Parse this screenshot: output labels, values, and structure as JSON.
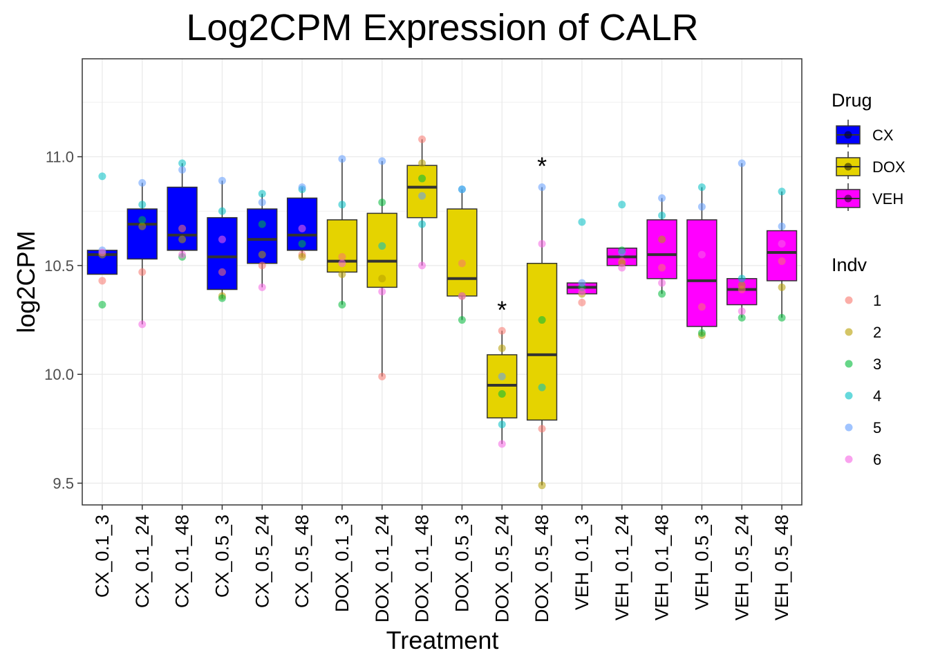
{
  "chart_data": {
    "type": "boxplot",
    "title": "Log2CPM Expression of CALR",
    "xlabel": "Treatment",
    "ylabel": "log2CPM",
    "ylim": [
      9.4,
      11.45
    ],
    "yticks": [
      9.5,
      10.0,
      10.5,
      11.0
    ],
    "ytick_labels": [
      "9.5",
      "10.0",
      "10.5",
      "11.0"
    ],
    "grid": true,
    "legend_position": "right",
    "legend_drug": {
      "title": "Drug",
      "entries": [
        {
          "label": "CX",
          "color": "#0000FF"
        },
        {
          "label": "DOX",
          "color": "#E5D300"
        },
        {
          "label": "VEH",
          "color": "#FF00FF"
        }
      ]
    },
    "legend_indv": {
      "title": "Indv",
      "entries": [
        {
          "label": "1",
          "color": "#F8766D"
        },
        {
          "label": "2",
          "color": "#B79F00"
        },
        {
          "label": "3",
          "color": "#00BA38"
        },
        {
          "label": "4",
          "color": "#00BFC4"
        },
        {
          "label": "5",
          "color": "#619CFF"
        },
        {
          "label": "6",
          "color": "#F564E3"
        }
      ]
    },
    "significance_marker": "*",
    "categories": [
      {
        "name": "CX_0.1_3",
        "drug": "CX",
        "min": 10.46,
        "q1": 10.46,
        "median": 10.55,
        "q3": 10.57,
        "max": 10.57,
        "sig": false,
        "points": [
          10.43,
          10.55,
          10.32,
          10.91,
          10.57,
          10.56
        ]
      },
      {
        "name": "CX_0.1_24",
        "drug": "CX",
        "min": 10.23,
        "q1": 10.53,
        "median": 10.69,
        "q3": 10.76,
        "max": 10.88,
        "sig": false,
        "points": [
          10.47,
          10.68,
          10.71,
          10.78,
          10.88,
          10.23
        ]
      },
      {
        "name": "CX_0.1_48",
        "drug": "CX",
        "min": 10.54,
        "q1": 10.57,
        "median": 10.64,
        "q3": 10.86,
        "max": 10.97,
        "sig": false,
        "points": [
          10.67,
          10.62,
          10.54,
          10.97,
          10.94,
          10.55
        ]
      },
      {
        "name": "CX_0.5_3",
        "drug": "CX",
        "min": 10.35,
        "q1": 10.39,
        "median": 10.54,
        "q3": 10.72,
        "max": 10.89,
        "sig": false,
        "points": [
          10.47,
          10.36,
          10.35,
          10.75,
          10.89,
          10.62
        ]
      },
      {
        "name": "CX_0.5_24",
        "drug": "CX",
        "min": 10.4,
        "q1": 10.51,
        "median": 10.62,
        "q3": 10.76,
        "max": 10.83,
        "sig": false,
        "points": [
          10.5,
          10.55,
          10.69,
          10.83,
          10.79,
          10.4
        ]
      },
      {
        "name": "CX_0.5_48",
        "drug": "CX",
        "min": 10.54,
        "q1": 10.57,
        "median": 10.64,
        "q3": 10.81,
        "max": 10.86,
        "sig": false,
        "points": [
          10.55,
          10.54,
          10.6,
          10.85,
          10.86,
          10.67
        ]
      },
      {
        "name": "DOX_0.1_3",
        "drug": "DOX",
        "min": 10.32,
        "q1": 10.47,
        "median": 10.52,
        "q3": 10.71,
        "max": 10.99,
        "sig": false,
        "points": [
          10.54,
          10.46,
          10.32,
          10.78,
          10.99,
          10.51
        ]
      },
      {
        "name": "DOX_0.1_24",
        "drug": "DOX",
        "min": 9.99,
        "q1": 10.4,
        "median": 10.52,
        "q3": 10.74,
        "max": 10.98,
        "sig": false,
        "points": [
          9.99,
          10.44,
          10.79,
          10.59,
          10.98,
          10.38
        ]
      },
      {
        "name": "DOX_0.1_48",
        "drug": "DOX",
        "min": 10.5,
        "q1": 10.72,
        "median": 10.86,
        "q3": 10.96,
        "max": 11.08,
        "sig": false,
        "points": [
          11.08,
          10.97,
          10.9,
          10.69,
          10.82,
          10.5
        ]
      },
      {
        "name": "DOX_0.5_3",
        "drug": "DOX",
        "min": 10.25,
        "q1": 10.36,
        "median": 10.44,
        "q3": 10.76,
        "max": 10.85,
        "sig": false,
        "points": [
          10.51,
          10.36,
          10.25,
          10.85,
          10.85,
          10.36
        ]
      },
      {
        "name": "DOX_0.5_24",
        "drug": "DOX",
        "min": 9.68,
        "q1": 9.8,
        "median": 9.95,
        "q3": 10.09,
        "max": 10.2,
        "sig": true,
        "points": [
          10.2,
          10.12,
          9.91,
          9.77,
          9.99,
          9.68
        ]
      },
      {
        "name": "DOX_0.5_48",
        "drug": "DOX",
        "min": 9.49,
        "q1": 9.79,
        "median": 10.09,
        "q3": 10.51,
        "max": 10.86,
        "sig": true,
        "points": [
          9.75,
          9.49,
          10.25,
          9.94,
          10.86,
          10.6
        ]
      },
      {
        "name": "VEH_0.1_3",
        "drug": "VEH",
        "min": 10.37,
        "q1": 10.37,
        "median": 10.4,
        "q3": 10.42,
        "max": 10.42,
        "sig": false,
        "points": [
          10.33,
          10.37,
          10.4,
          10.7,
          10.42,
          10.38
        ]
      },
      {
        "name": "VEH_0.1_24",
        "drug": "VEH",
        "min": 10.5,
        "q1": 10.5,
        "median": 10.54,
        "q3": 10.58,
        "max": 10.58,
        "sig": false,
        "points": [
          10.52,
          10.51,
          10.57,
          10.78,
          10.56,
          10.49
        ]
      },
      {
        "name": "VEH_0.1_48",
        "drug": "VEH",
        "min": 10.37,
        "q1": 10.44,
        "median": 10.55,
        "q3": 10.71,
        "max": 10.81,
        "sig": false,
        "points": [
          10.49,
          10.62,
          10.37,
          10.73,
          10.81,
          10.42
        ]
      },
      {
        "name": "VEH_0.5_3",
        "drug": "VEH",
        "min": 10.18,
        "q1": 10.22,
        "median": 10.43,
        "q3": 10.71,
        "max": 10.86,
        "sig": false,
        "points": [
          10.31,
          10.18,
          10.19,
          10.86,
          10.77,
          10.55
        ]
      },
      {
        "name": "VEH_0.5_24",
        "drug": "VEH",
        "min": 10.26,
        "q1": 10.32,
        "median": 10.39,
        "q3": 10.44,
        "max": 10.97,
        "sig": false,
        "points": [
          10.39,
          10.41,
          10.26,
          10.44,
          10.97,
          10.29
        ]
      },
      {
        "name": "VEH_0.5_48",
        "drug": "VEH",
        "min": 10.26,
        "q1": 10.43,
        "median": 10.56,
        "q3": 10.66,
        "max": 10.84,
        "sig": false,
        "points": [
          10.52,
          10.4,
          10.26,
          10.84,
          10.68,
          10.6
        ]
      }
    ]
  }
}
